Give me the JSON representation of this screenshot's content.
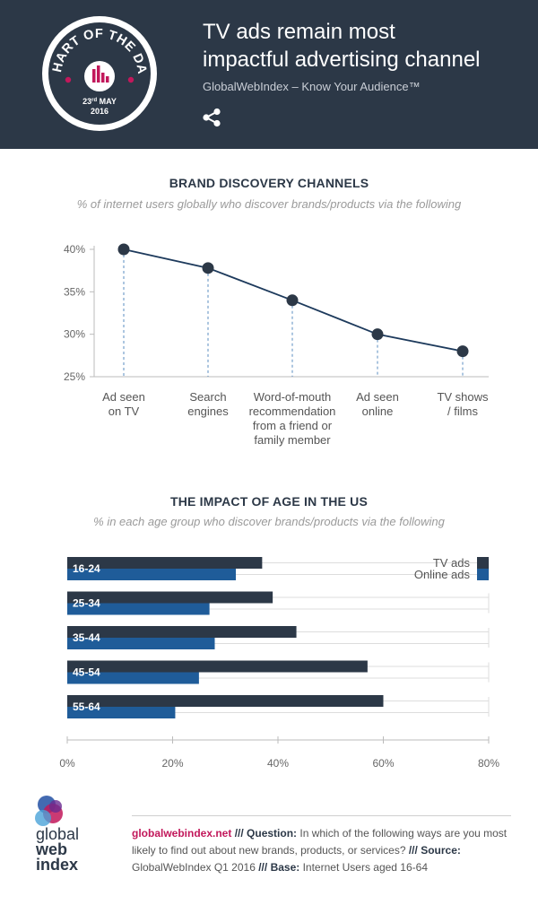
{
  "header": {
    "title_line1": "TV ads remain most",
    "title_line2": "impactful advertising channel",
    "subtitle": "GlobalWebIndex – Know Your Audience™",
    "badge_text": "CHART OF THE DAY",
    "badge_date_day": "23",
    "badge_date_suffix": "rd",
    "badge_date_month": "MAY",
    "badge_date_year": "2016",
    "share_icon": "share-icon"
  },
  "section1": {
    "title": "BRAND DISCOVERY CHANNELS",
    "subtitle": "% of internet users globally who discover brands/products via the following"
  },
  "section2": {
    "title": "THE IMPACT OF AGE IN THE US",
    "subtitle": "% in each age group who discover brands/products via the following"
  },
  "chart_data": [
    {
      "type": "line",
      "title": "BRAND DISCOVERY CHANNELS",
      "subtitle": "% of internet users globally who discover brands/products via the following",
      "categories": [
        [
          "Ad seen",
          "on TV"
        ],
        [
          "Search",
          "engines"
        ],
        [
          "Word-of-mouth",
          "recommendation",
          "from a friend or",
          "family member"
        ],
        [
          "Ad seen",
          "online"
        ],
        [
          "TV shows",
          "/ films"
        ]
      ],
      "values": [
        40,
        37.8,
        34,
        30,
        28
      ],
      "ylim": [
        25,
        40
      ],
      "yticks": [
        "25%",
        "30%",
        "35%",
        "40%"
      ],
      "ytick_values": [
        25,
        30,
        35,
        40
      ],
      "color": "#1d3a5c"
    },
    {
      "type": "bar",
      "orientation": "horizontal",
      "title": "THE IMPACT OF AGE IN THE US",
      "subtitle": "% in each age group who discover brands/products via the following",
      "categories": [
        "16-24",
        "25-34",
        "35-44",
        "45-54",
        "55-64"
      ],
      "series": [
        {
          "name": "TV ads",
          "values": [
            37,
            39,
            43.5,
            57,
            60
          ],
          "color": "#2c3847"
        },
        {
          "name": "Online ads",
          "values": [
            32,
            27,
            28,
            25,
            20.5
          ],
          "color": "#1f5c99"
        }
      ],
      "xlim": [
        0,
        80
      ],
      "xticks": [
        "0%",
        "20%",
        "40%",
        "60%",
        "80%"
      ],
      "xtick_values": [
        0,
        20,
        40,
        60,
        80
      ],
      "legend": "top-right"
    }
  ],
  "footer": {
    "logo_line1": "global",
    "logo_line2": "web",
    "logo_line3": "index",
    "site": "globalwebindex.net",
    "sep1": " /// ",
    "question_label": "Question:",
    "question_text": " In which of the following ways are you most likely to find out about new brands, products, or services? ",
    "sep2": "/// ",
    "source_label": "Source:",
    "source_text": " GlobalWebIndex Q1 2016 ",
    "sep3": "/// ",
    "base_label": "Base:",
    "base_text": " Internet Users aged 16-64"
  },
  "colors": {
    "header_bg": "#2c3847",
    "accent_pink": "#c2185b",
    "tv_bar": "#2c3847",
    "online_bar": "#1f5c99"
  }
}
